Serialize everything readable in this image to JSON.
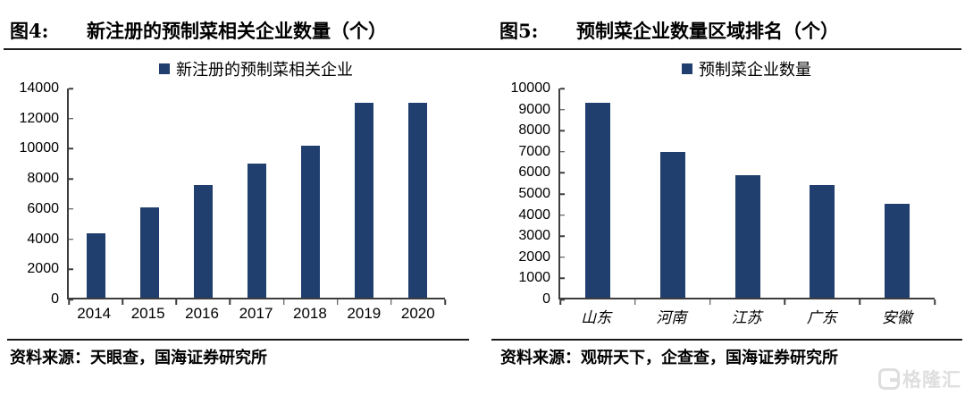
{
  "figures": [
    {
      "label": "图4:",
      "title": "新注册的预制菜相关企业数量（个）",
      "source": "资料来源：天眼查，国海证券研究所"
    },
    {
      "label": "图5:",
      "title": "预制菜企业数量区域排名（个）",
      "source": "资料来源：观研天下，企查查，国海证券研究所"
    }
  ],
  "chart_data": [
    {
      "type": "bar",
      "title": "新注册的预制菜相关企业数量（个）",
      "legend": "新注册的预制菜相关企业",
      "legend_position": "top",
      "categories": [
        "2014",
        "2015",
        "2016",
        "2017",
        "2018",
        "2019",
        "2020"
      ],
      "values": [
        4300,
        6000,
        7500,
        8900,
        10100,
        12950,
        12950
      ],
      "xlabel": "",
      "ylabel": "",
      "ylim": [
        0,
        14000
      ],
      "ytick_step": 2000,
      "grid": false,
      "bar_color": "#203f6e"
    },
    {
      "type": "bar",
      "title": "预制菜企业数量区域排名（个）",
      "legend": "预制菜企业数量",
      "legend_position": "top",
      "categories": [
        "山东",
        "河南",
        "江苏",
        "广东",
        "安徽"
      ],
      "values": [
        9250,
        6900,
        5800,
        5350,
        4450
      ],
      "xlabel": "",
      "ylabel": "",
      "ylim": [
        0,
        10000
      ],
      "ytick_step": 1000,
      "grid": false,
      "bar_color": "#203f6e"
    }
  ],
  "watermark": {
    "brand": "格隆汇"
  },
  "colors": {
    "bar": "#203f6e",
    "axis": "#3d3d3d",
    "rule": "#1a1a1a",
    "watermark": "#dedede",
    "background": "#ffffff"
  }
}
